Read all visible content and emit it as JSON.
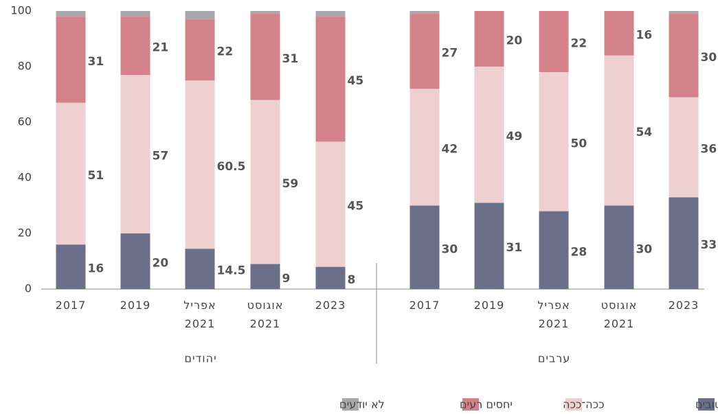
{
  "chart_data": {
    "type": "stacked_bar",
    "categories": [
      "2017",
      "2019",
      "אפריל 2021",
      "אוגוסט 2021",
      "2023",
      "2017",
      "2019",
      "אפריל 2021",
      "אוגוסט 2021",
      "2023"
    ],
    "group_labels": [
      "יהודים",
      "ערבים"
    ],
    "series": [
      {
        "name": "יחסים טובים",
        "color": "#6b6f8a",
        "values": [
          16,
          20,
          14.5,
          9,
          8,
          30,
          31,
          28,
          30,
          33
        ]
      },
      {
        "name": "ככה־ככה",
        "color": "#efd0d0",
        "values": [
          51,
          57,
          60.5,
          59,
          45,
          42,
          49,
          50,
          54,
          36
        ]
      },
      {
        "name": "יחסים רעים",
        "color": "#d4828a",
        "values": [
          31,
          21,
          22,
          31,
          45,
          27,
          20,
          22,
          16,
          30
        ]
      },
      {
        "name": "לא יודעים",
        "color": "#a8a8ac",
        "values": [
          2,
          2,
          3,
          1,
          2,
          1,
          0,
          0,
          0,
          1
        ],
        "labels_shown": false
      }
    ],
    "ylim": [
      0,
      100
    ],
    "yticks": [
      0,
      20,
      40,
      60,
      80,
      100
    ]
  }
}
